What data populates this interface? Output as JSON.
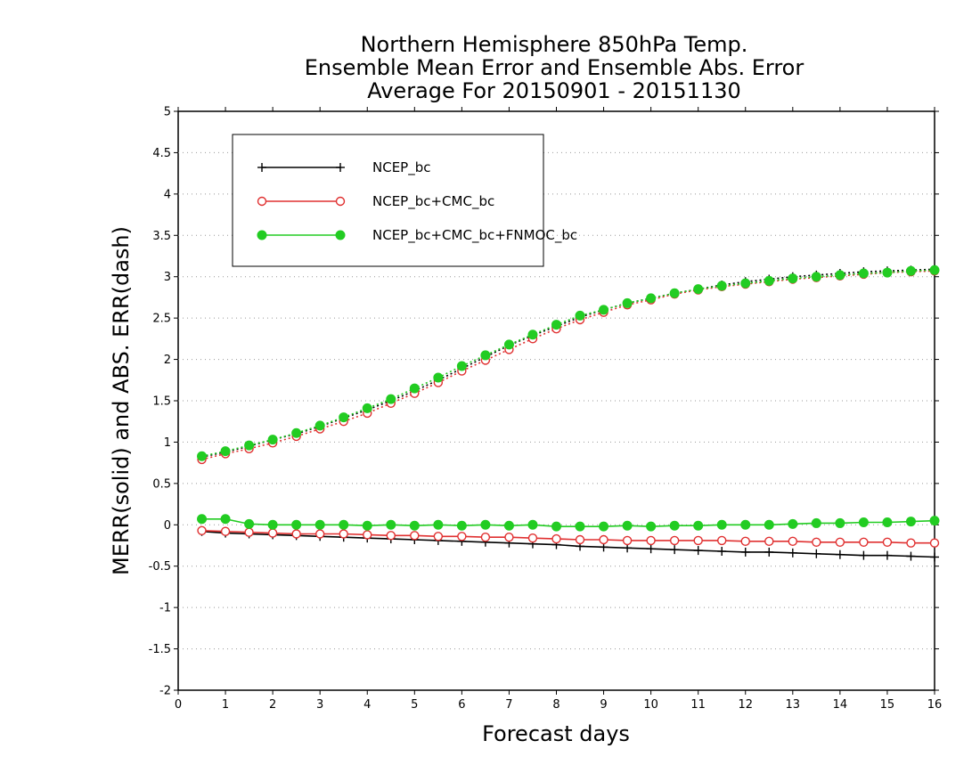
{
  "chart_data": {
    "type": "line",
    "title": [
      "Northern Hemisphere 850hPa Temp.",
      "Ensemble Mean Error and Ensemble Abs. Error",
      "Average For 20150901 - 20151130"
    ],
    "xlabel": "Forecast days",
    "ylabel": "MERR(solid) and ABS. ERR(dash)",
    "xlim": [
      0,
      16
    ],
    "ylim": [
      -2,
      5
    ],
    "xticks": [
      0,
      1,
      2,
      3,
      4,
      5,
      6,
      7,
      8,
      9,
      10,
      11,
      12,
      13,
      14,
      15,
      16
    ],
    "yticks": [
      -2,
      -1.5,
      -1,
      -0.5,
      0,
      0.5,
      1,
      1.5,
      2,
      2.5,
      3,
      3.5,
      4,
      4.5,
      5
    ],
    "ytick_labels": [
      "-2",
      "-1.5",
      "-1",
      "-0.5",
      "0",
      "0.5",
      "1",
      "1.5",
      "2",
      "2.5",
      "3",
      "3.5",
      "4",
      "4.5",
      "5"
    ],
    "grid": "horizontal dotted",
    "legend_position": "top-left",
    "x": [
      0.5,
      1,
      1.5,
      2,
      2.5,
      3,
      3.5,
      4,
      4.5,
      5,
      5.5,
      6,
      6.5,
      7,
      7.5,
      8,
      8.5,
      9,
      9.5,
      10,
      10.5,
      11,
      11.5,
      12,
      12.5,
      13,
      13.5,
      14,
      14.5,
      15,
      15.5,
      16
    ],
    "series": [
      {
        "name": "NCEP_bc",
        "color": "#000000",
        "marker": "plus",
        "merr": [
          -0.08,
          -0.1,
          -0.11,
          -0.12,
          -0.13,
          -0.14,
          -0.15,
          -0.16,
          -0.17,
          -0.18,
          -0.19,
          -0.2,
          -0.21,
          -0.22,
          -0.23,
          -0.24,
          -0.26,
          -0.27,
          -0.28,
          -0.29,
          -0.3,
          -0.31,
          -0.32,
          -0.33,
          -0.33,
          -0.34,
          -0.35,
          -0.36,
          -0.37,
          -0.37,
          -0.38,
          -0.39
        ],
        "abs_err": [
          0.82,
          0.88,
          0.95,
          1.03,
          1.1,
          1.19,
          1.29,
          1.39,
          1.5,
          1.62,
          1.75,
          1.89,
          2.03,
          2.17,
          2.29,
          2.4,
          2.51,
          2.6,
          2.68,
          2.74,
          2.8,
          2.85,
          2.9,
          2.94,
          2.97,
          3.0,
          3.02,
          3.04,
          3.06,
          3.07,
          3.08,
          3.09
        ]
      },
      {
        "name": "NCEP_bc+CMC_bc",
        "color": "#e03030",
        "marker": "open-circle",
        "merr": [
          -0.07,
          -0.08,
          -0.09,
          -0.1,
          -0.11,
          -0.11,
          -0.11,
          -0.12,
          -0.13,
          -0.13,
          -0.14,
          -0.14,
          -0.15,
          -0.15,
          -0.16,
          -0.17,
          -0.18,
          -0.18,
          -0.19,
          -0.19,
          -0.19,
          -0.19,
          -0.19,
          -0.2,
          -0.2,
          -0.2,
          -0.21,
          -0.21,
          -0.21,
          -0.21,
          -0.22,
          -0.22
        ],
        "abs_err": [
          0.79,
          0.86,
          0.92,
          0.99,
          1.07,
          1.16,
          1.25,
          1.35,
          1.47,
          1.59,
          1.72,
          1.86,
          1.99,
          2.12,
          2.25,
          2.37,
          2.48,
          2.57,
          2.66,
          2.72,
          2.79,
          2.84,
          2.88,
          2.91,
          2.94,
          2.97,
          2.99,
          3.01,
          3.03,
          3.05,
          3.06,
          3.07
        ]
      },
      {
        "name": "NCEP_bc+CMC_bc+FNMOC_bc",
        "color": "#22cc22",
        "marker": "filled-circle",
        "merr": [
          0.07,
          0.07,
          0.01,
          0.0,
          0.0,
          0.0,
          0.0,
          -0.01,
          0.0,
          -0.01,
          0.0,
          -0.01,
          0.0,
          -0.01,
          0.0,
          -0.02,
          -0.02,
          -0.02,
          -0.01,
          -0.02,
          -0.01,
          -0.01,
          0.0,
          0.0,
          0.0,
          0.01,
          0.02,
          0.02,
          0.03,
          0.03,
          0.04,
          0.05
        ],
        "abs_err": [
          0.83,
          0.89,
          0.96,
          1.03,
          1.11,
          1.2,
          1.3,
          1.41,
          1.52,
          1.65,
          1.78,
          1.92,
          2.05,
          2.18,
          2.3,
          2.42,
          2.53,
          2.6,
          2.68,
          2.74,
          2.8,
          2.85,
          2.89,
          2.92,
          2.95,
          2.98,
          3.0,
          3.02,
          3.04,
          3.05,
          3.07,
          3.08
        ]
      }
    ]
  }
}
